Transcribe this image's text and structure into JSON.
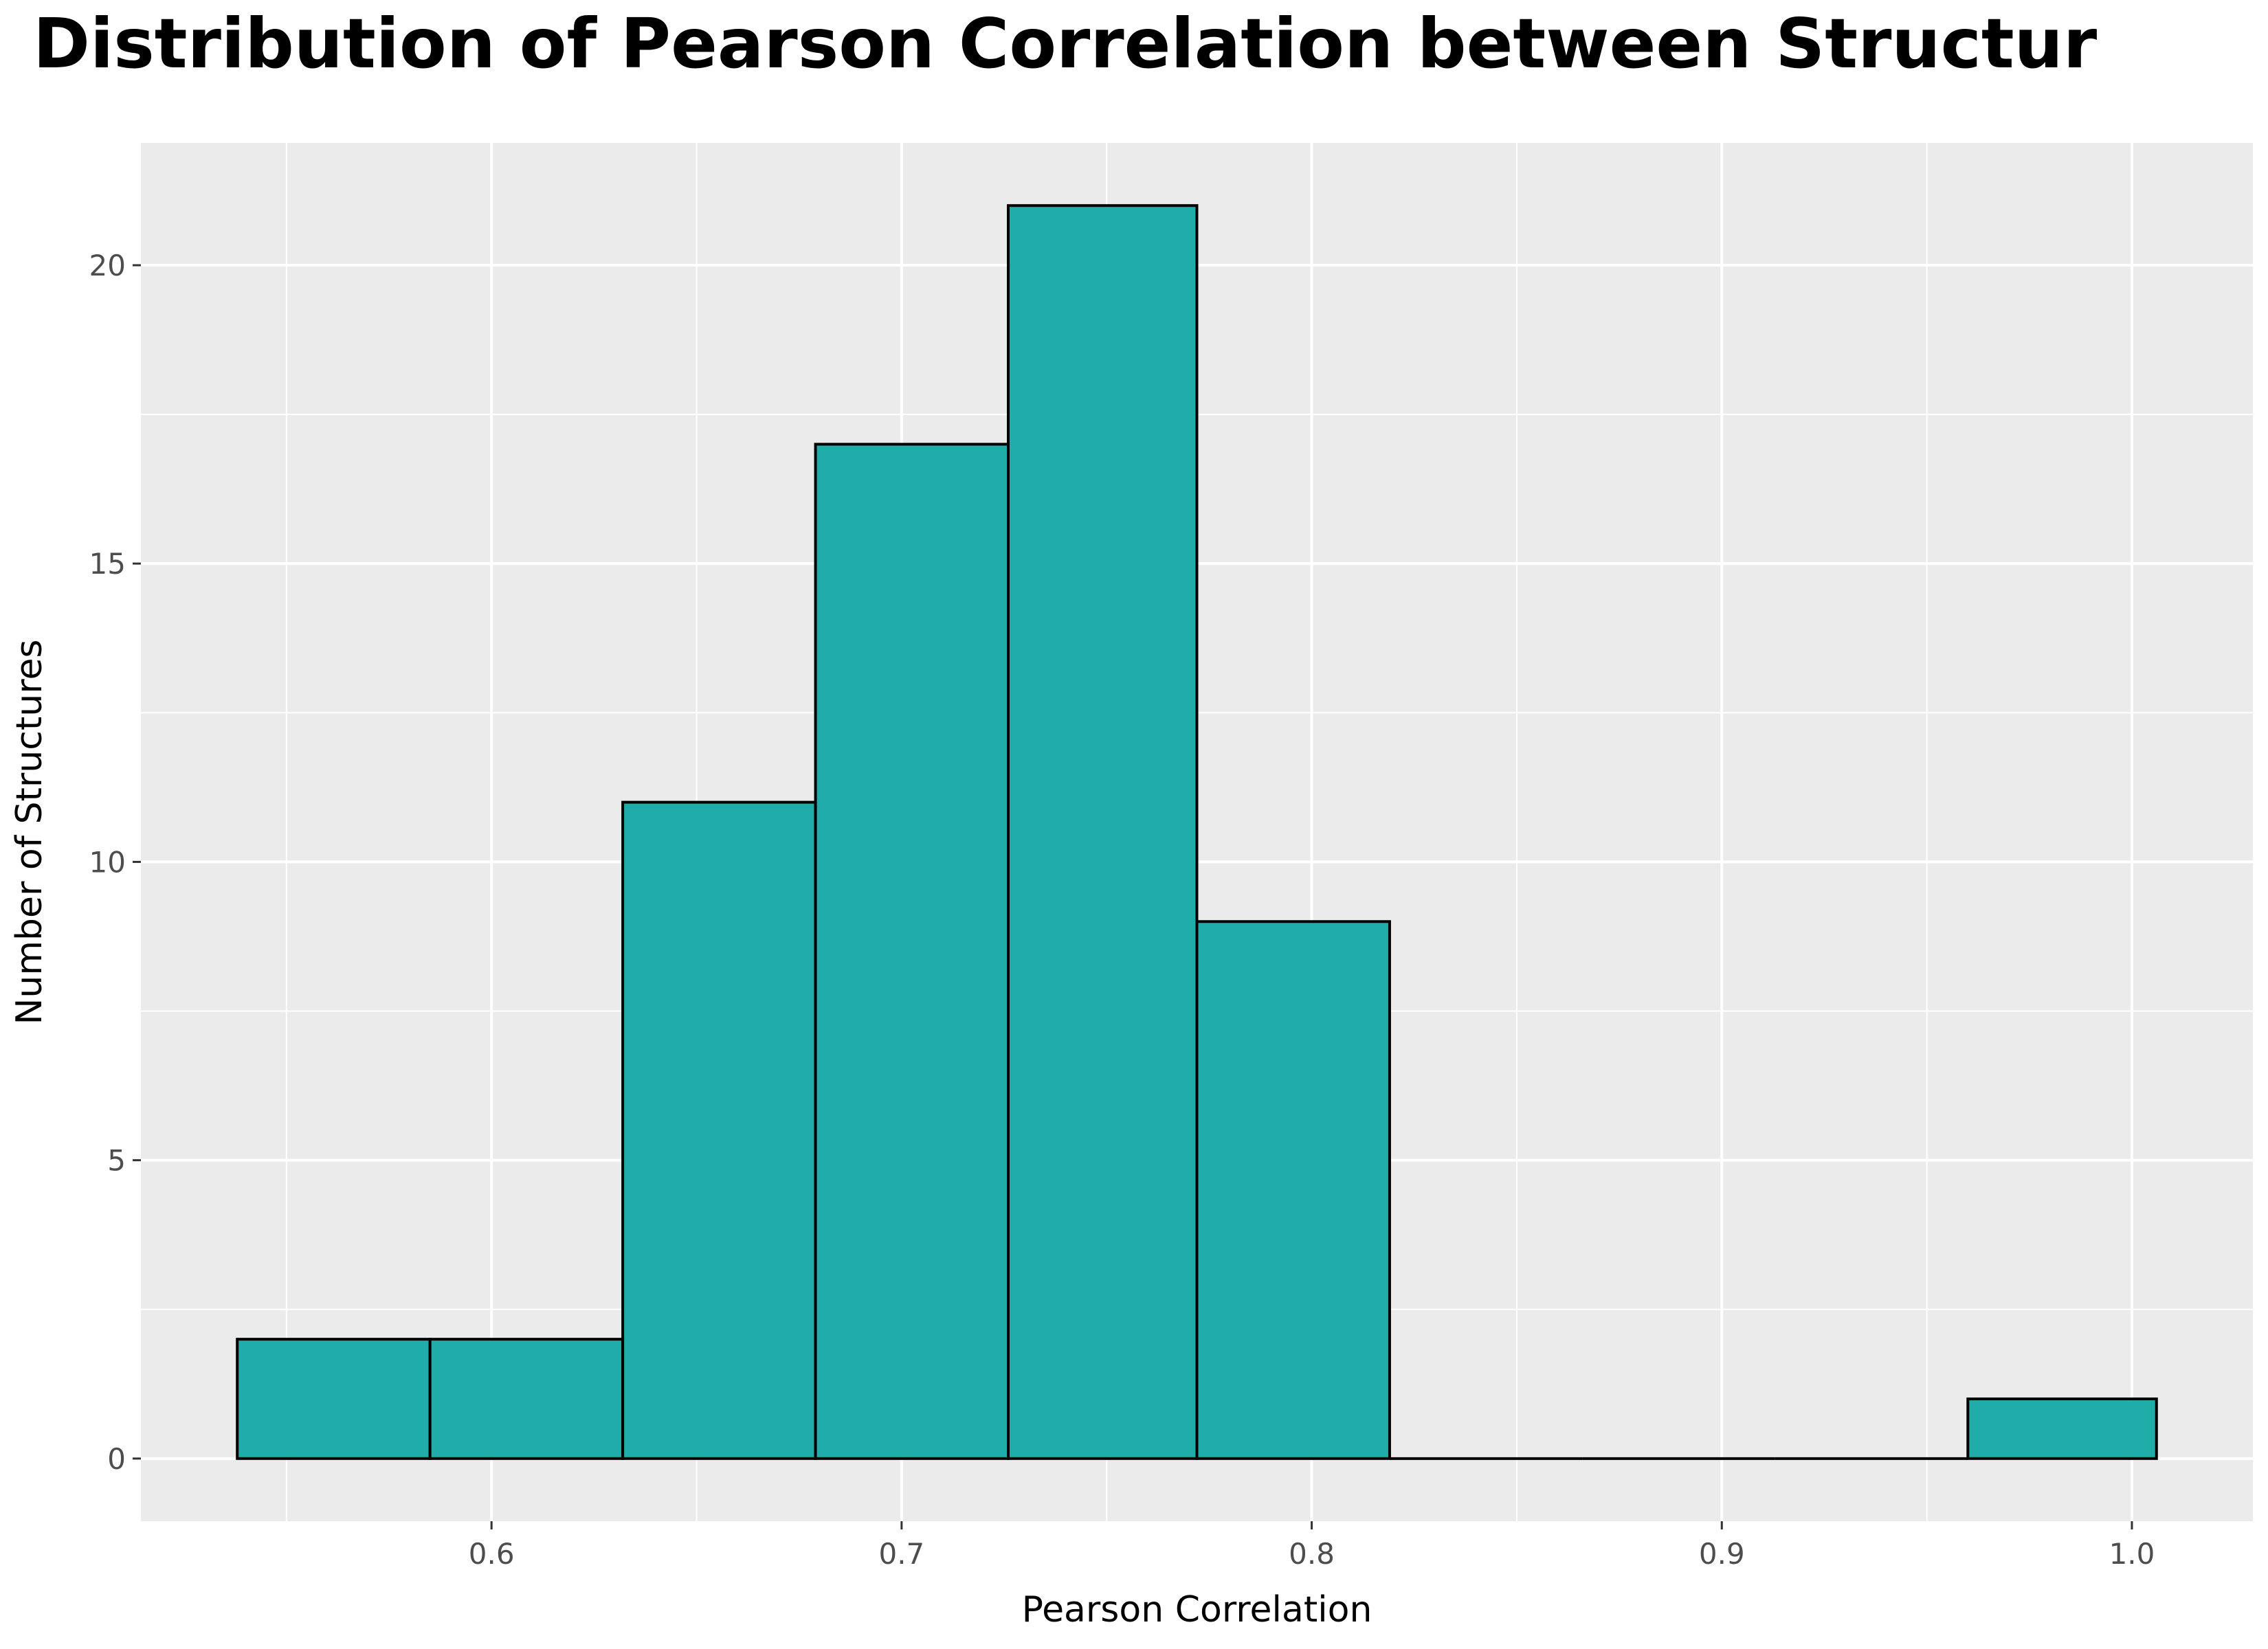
{
  "chart_data": {
    "type": "bar",
    "subtype": "histogram",
    "title": "Distribution of Pearson Correlation between Structur",
    "xlabel": "Pearson Correlation",
    "ylabel": "Number of Structures",
    "bins": [
      {
        "x0": 0.538,
        "x1": 0.585,
        "count": 2
      },
      {
        "x0": 0.585,
        "x1": 0.632,
        "count": 2
      },
      {
        "x0": 0.632,
        "x1": 0.679,
        "count": 11
      },
      {
        "x0": 0.679,
        "x1": 0.726,
        "count": 17
      },
      {
        "x0": 0.726,
        "x1": 0.772,
        "count": 21
      },
      {
        "x0": 0.772,
        "x1": 0.819,
        "count": 9
      },
      {
        "x0": 0.819,
        "x1": 0.866,
        "count": 0
      },
      {
        "x0": 0.866,
        "x1": 0.913,
        "count": 0
      },
      {
        "x0": 0.913,
        "x1": 0.96,
        "count": 0
      },
      {
        "x0": 0.96,
        "x1": 1.006,
        "count": 1
      }
    ],
    "xlim": [
      0.5145,
      1.0295
    ],
    "ylim": [
      -1.05,
      22.05
    ],
    "x_ticks": [
      {
        "value": 0.6,
        "label": "0.6"
      },
      {
        "value": 0.7,
        "label": "0.7"
      },
      {
        "value": 0.8,
        "label": "0.8"
      },
      {
        "value": 0.9,
        "label": "0.9"
      },
      {
        "value": 1.0,
        "label": "1.0"
      }
    ],
    "y_ticks": [
      {
        "value": 0,
        "label": "0"
      },
      {
        "value": 5,
        "label": "5"
      },
      {
        "value": 10,
        "label": "10"
      },
      {
        "value": 15,
        "label": "15"
      },
      {
        "value": 20,
        "label": "20"
      }
    ],
    "grid": true,
    "colors": {
      "fill": "#20ADAA",
      "outline": "#000000",
      "panel": "#EBEBEB",
      "grid": "#FFFFFF"
    }
  }
}
